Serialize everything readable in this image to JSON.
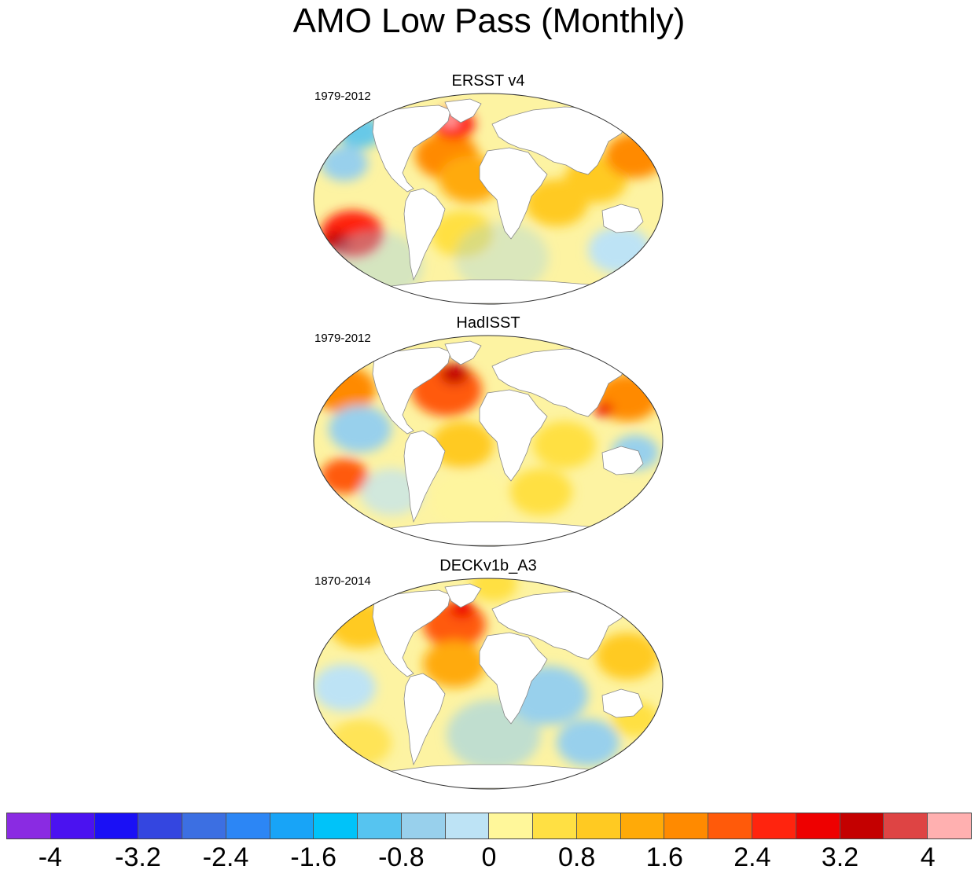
{
  "title": "AMO Low Pass (Monthly)",
  "panels": [
    {
      "title": "ERSST v4",
      "years": "1979-2012",
      "pattern": "ersst"
    },
    {
      "title": "HadISST",
      "years": "1979-2012",
      "pattern": "hadisst"
    },
    {
      "title": "DECKv1b_A3",
      "years": "1870-2014",
      "pattern": "deck"
    }
  ],
  "colorbar": {
    "colors": [
      "#8a2be2",
      "#4b12f0",
      "#1a10f5",
      "#3446e0",
      "#3c6fe2",
      "#2c86f5",
      "#18a4f7",
      "#00c3f9",
      "#56c4f0",
      "#98d0ec",
      "#bde3f5",
      "#fff79a",
      "#ffe043",
      "#ffca22",
      "#ffaa08",
      "#ff8a00",
      "#ff5a0a",
      "#ff240e",
      "#ee0000",
      "#c40000",
      "#de4444",
      "#ffb0b0"
    ],
    "tick_labels": [
      "-4",
      "-3.2",
      "-2.4",
      "-1.6",
      "-0.8",
      "0",
      "0.8",
      "1.6",
      "2.4",
      "3.2",
      "4"
    ]
  },
  "colors": {
    "land": "#ffffff",
    "coast": "#888888",
    "neutral_ocean": "#fdf3a2"
  }
}
